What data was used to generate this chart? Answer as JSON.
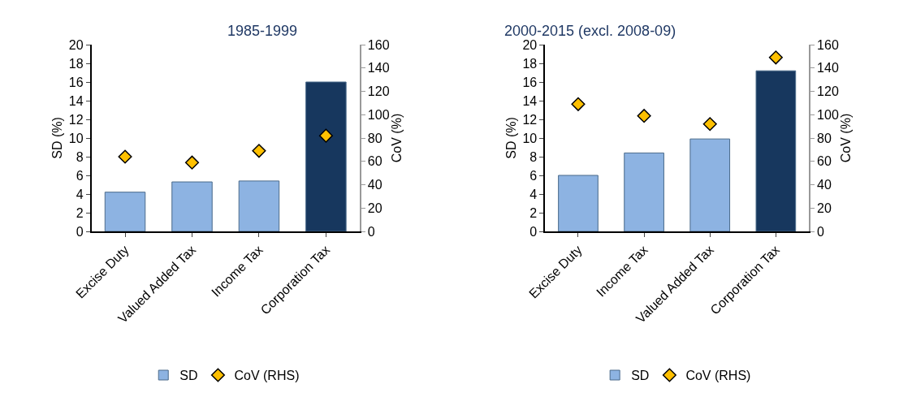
{
  "chart_data": [
    {
      "type": "bar",
      "title": "1985-1999",
      "categories": [
        "Excise Duty",
        "Valued Added Tax",
        "Income Tax",
        "Corporation Tax"
      ],
      "ylabel": "SD (%)",
      "y2label": "CoV (%)",
      "ylim": [
        0,
        20
      ],
      "yticks": [
        0,
        2,
        4,
        6,
        8,
        10,
        12,
        14,
        16,
        18,
        20
      ],
      "y2lim": [
        0,
        160
      ],
      "y2ticks": [
        0,
        20,
        40,
        60,
        80,
        100,
        120,
        140,
        160
      ],
      "legend": "bottom",
      "series": [
        {
          "name": "SD",
          "color": "#8db3e2",
          "colors": [
            "#8db3e2",
            "#8db3e2",
            "#8db3e2",
            "#17375e"
          ],
          "values": [
            4.2,
            5.3,
            5.4,
            16.0
          ]
        },
        {
          "name": "CoV (RHS)",
          "type": "scatter",
          "axis": "y2",
          "marker": "diamond",
          "color": "#ffc000",
          "values": [
            64,
            59,
            69,
            82
          ]
        }
      ]
    },
    {
      "type": "bar",
      "title": "2000-2015 (excl. 2008-09)",
      "categories": [
        "Excise Duty",
        "Income Tax",
        "Valued Added Tax",
        "Corporation Tax"
      ],
      "ylabel": "SD (%)",
      "y2label": "CoV (%)",
      "ylim": [
        0,
        20
      ],
      "yticks": [
        0,
        2,
        4,
        6,
        8,
        10,
        12,
        14,
        16,
        18,
        20
      ],
      "y2lim": [
        0,
        160
      ],
      "y2ticks": [
        0,
        20,
        40,
        60,
        80,
        100,
        120,
        140,
        160
      ],
      "legend": "bottom",
      "series": [
        {
          "name": "SD",
          "color": "#8db3e2",
          "colors": [
            "#8db3e2",
            "#8db3e2",
            "#8db3e2",
            "#17375e"
          ],
          "values": [
            6.0,
            8.4,
            9.9,
            17.2
          ]
        },
        {
          "name": "CoV (RHS)",
          "type": "scatter",
          "axis": "y2",
          "marker": "diamond",
          "color": "#ffc000",
          "values": [
            109,
            99,
            92,
            149
          ]
        }
      ]
    }
  ]
}
